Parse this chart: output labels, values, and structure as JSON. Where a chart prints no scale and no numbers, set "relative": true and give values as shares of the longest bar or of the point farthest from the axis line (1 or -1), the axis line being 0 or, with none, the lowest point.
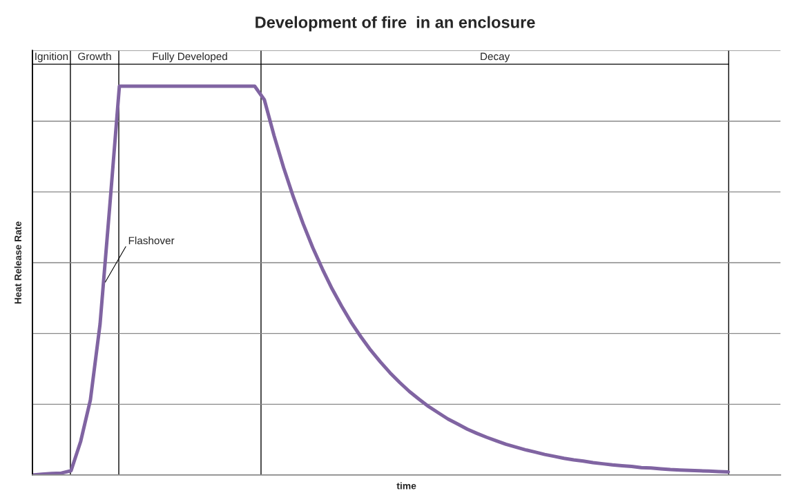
{
  "chart_data": {
    "type": "line",
    "title": "Development of fire  in an enclosure",
    "xlabel": "time",
    "ylabel": "Heat Release Rate",
    "relative": true,
    "grid": true,
    "legend": false,
    "marker": "none",
    "line_style": "solid",
    "categories": [
      null,
      null,
      null,
      null,
      null,
      null,
      null,
      null,
      null,
      null,
      null,
      null,
      null,
      null,
      null,
      null,
      null,
      null,
      null,
      null,
      null,
      null,
      null,
      null,
      null,
      null,
      null,
      null,
      null,
      null,
      null,
      null,
      null,
      null,
      null,
      null,
      null,
      null,
      null,
      null,
      null,
      null,
      null,
      null,
      null,
      null,
      null,
      null,
      null,
      null,
      null,
      null,
      null,
      null,
      null,
      null,
      null,
      null,
      null,
      null,
      null,
      null,
      null,
      null,
      null,
      null,
      null,
      null,
      null,
      null,
      null,
      null,
      null
    ],
    "series": [
      {
        "color": "#8064a2",
        "values": [
          0,
          0.002,
          0.004,
          0.005,
          0.011,
          0.087,
          0.193,
          0.388,
          0.69,
          1,
          1,
          1,
          1,
          1,
          1,
          1,
          1,
          1,
          1,
          1,
          1,
          1,
          1,
          1,
          0.965,
          0.873,
          0.79,
          0.715,
          0.647,
          0.585,
          0.53,
          0.479,
          0.434,
          0.392,
          0.355,
          0.321,
          0.291,
          0.263,
          0.238,
          0.215,
          0.195,
          0.176,
          0.16,
          0.144,
          0.131,
          0.118,
          0.107,
          0.097,
          0.088,
          0.079,
          0.072,
          0.065,
          0.059,
          0.053,
          0.048,
          0.043,
          0.039,
          0.036,
          0.032,
          0.029,
          0.026,
          0.024,
          0.022,
          0.019,
          0.018,
          0.016,
          0.014,
          0.013,
          0.012,
          0.011,
          0.01,
          0.009,
          0.008
        ]
      }
    ],
    "annotations": [
      "Ignition",
      "Growth",
      "Fully Developed",
      "Decay",
      "Flashover"
    ]
  }
}
